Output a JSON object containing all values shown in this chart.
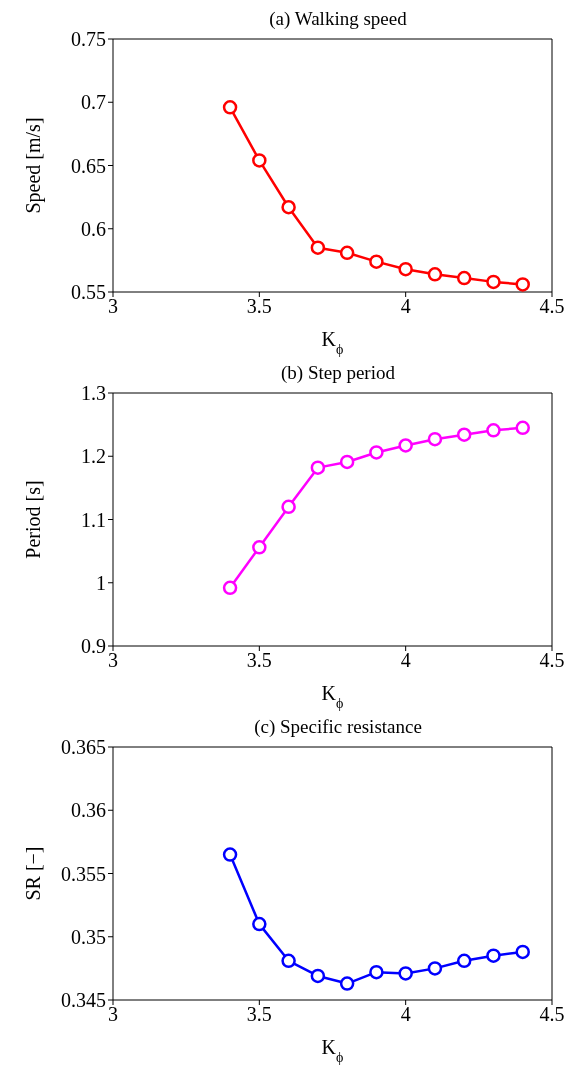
{
  "chart_data": [
    {
      "type": "line",
      "title": "(a) Walking speed",
      "xlabel": "K$_{ϕ}$",
      "ylabel": "Speed [m/s]",
      "x": [
        3.4,
        3.5,
        3.6,
        3.7,
        3.8,
        3.9,
        4.0,
        4.1,
        4.2,
        4.3,
        4.4
      ],
      "series": [
        {
          "color": "#ff0000",
          "values": [
            0.696,
            0.654,
            0.617,
            0.585,
            0.581,
            0.574,
            0.568,
            0.564,
            0.561,
            0.558,
            0.556
          ]
        }
      ],
      "xlim": [
        3,
        4.5
      ],
      "xticks": [
        3,
        3.5,
        4,
        4.5
      ],
      "ylim": [
        0.55,
        0.75
      ],
      "yticks": [
        0.55,
        0.6,
        0.65,
        0.7,
        0.75
      ],
      "marker": "circle",
      "line_style": "solid"
    },
    {
      "type": "line",
      "title": "(b) Step period",
      "xlabel": "K$_{ϕ}$",
      "ylabel": "Period [s]",
      "x": [
        3.4,
        3.5,
        3.6,
        3.7,
        3.8,
        3.9,
        4.0,
        4.1,
        4.2,
        4.3,
        4.4
      ],
      "series": [
        {
          "color": "#ff00ff",
          "values": [
            0.992,
            1.056,
            1.12,
            1.182,
            1.191,
            1.206,
            1.217,
            1.227,
            1.234,
            1.241,
            1.245
          ]
        }
      ],
      "xlim": [
        3,
        4.5
      ],
      "xticks": [
        3,
        3.5,
        4,
        4.5
      ],
      "ylim": [
        0.9,
        1.3
      ],
      "yticks": [
        0.9,
        1,
        1.1,
        1.2,
        1.3
      ],
      "marker": "circle",
      "line_style": "solid"
    },
    {
      "type": "line",
      "title": "(c) Specific resistance",
      "xlabel": "K$_{ϕ}$",
      "ylabel": "SR [−]",
      "x": [
        3.4,
        3.5,
        3.6,
        3.7,
        3.8,
        3.9,
        4.0,
        4.1,
        4.2,
        4.3,
        4.4
      ],
      "series": [
        {
          "color": "#0000ff",
          "values": [
            0.3565,
            0.351,
            0.3481,
            0.3469,
            0.3463,
            0.3472,
            0.3471,
            0.3475,
            0.3481,
            0.3485,
            0.3488
          ]
        }
      ],
      "xlim": [
        3,
        4.5
      ],
      "xticks": [
        3,
        3.5,
        4,
        4.5
      ],
      "ylim": [
        0.345,
        0.365
      ],
      "yticks": [
        0.345,
        0.35,
        0.355,
        0.36,
        0.365
      ],
      "marker": "circle",
      "line_style": "solid"
    }
  ]
}
